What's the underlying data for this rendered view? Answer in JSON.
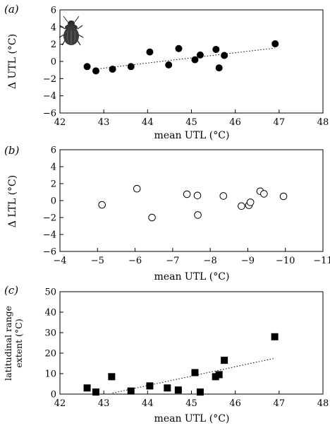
{
  "chart_data": [
    {
      "type": "scatter",
      "panel_label": "(a)",
      "xlabel": "mean UTL (°C)",
      "ylabel": "Δ UTL (°C)",
      "xlim": [
        42,
        48
      ],
      "ylim": [
        -6,
        6
      ],
      "xticks": [
        "42",
        "43",
        "44",
        "45",
        "46",
        "47",
        "48"
      ],
      "yticks": [
        "6",
        "4",
        "2",
        "0",
        "−2",
        "−4",
        "−6"
      ],
      "x_reversed": false,
      "marker": "filled-circle",
      "trendline": "dotted",
      "icon": "beetle-icon",
      "points": [
        {
          "x": 42.62,
          "y": -0.6
        },
        {
          "x": 42.82,
          "y": -1.1
        },
        {
          "x": 43.2,
          "y": -0.9
        },
        {
          "x": 43.62,
          "y": -0.6
        },
        {
          "x": 44.05,
          "y": 1.1
        },
        {
          "x": 44.48,
          "y": -0.4
        },
        {
          "x": 44.71,
          "y": 1.5
        },
        {
          "x": 45.08,
          "y": 0.2
        },
        {
          "x": 45.2,
          "y": 0.75
        },
        {
          "x": 45.56,
          "y": 1.4
        },
        {
          "x": 45.63,
          "y": -0.75
        },
        {
          "x": 45.75,
          "y": 0.7
        },
        {
          "x": 46.91,
          "y": 2.05
        }
      ],
      "trend": {
        "x": [
          42.8,
          46.9
        ],
        "y": [
          -0.9,
          1.55
        ]
      }
    },
    {
      "type": "scatter",
      "panel_label": "(b)",
      "xlabel": "mean UTL (°C)",
      "ylabel": "Δ LTL (°C)",
      "xlim": [
        -4,
        -11
      ],
      "ylim": [
        -6,
        6
      ],
      "xticks": [
        "−4",
        "−5",
        "−6",
        "−7",
        "−8",
        "−9",
        "−10",
        "−11"
      ],
      "yticks": [
        "6",
        "4",
        "2",
        "0",
        "−2",
        "−4",
        "−6"
      ],
      "x_reversed": true,
      "marker": "open-circle",
      "points": [
        {
          "x": -5.12,
          "y": -0.5
        },
        {
          "x": -6.05,
          "y": 1.4
        },
        {
          "x": -6.45,
          "y": -2.0
        },
        {
          "x": -7.38,
          "y": 0.75
        },
        {
          "x": -7.66,
          "y": 0.6
        },
        {
          "x": -7.67,
          "y": -1.7
        },
        {
          "x": -8.35,
          "y": 0.55
        },
        {
          "x": -8.83,
          "y": -0.65
        },
        {
          "x": -9.03,
          "y": -0.55
        },
        {
          "x": -9.07,
          "y": -0.2
        },
        {
          "x": -9.33,
          "y": 1.1
        },
        {
          "x": -9.43,
          "y": 0.8
        },
        {
          "x": -9.95,
          "y": 0.5
        }
      ]
    },
    {
      "type": "scatter",
      "panel_label": "(c)",
      "xlabel": "mean UTL (°C)",
      "ylabel": [
        "latitudinal range",
        "extent (°C)"
      ],
      "xlim": [
        42,
        48
      ],
      "ylim": [
        0,
        50
      ],
      "xticks": [
        "42",
        "43",
        "44",
        "45",
        "46",
        "47",
        "48"
      ],
      "yticks": [
        "50",
        "40",
        "30",
        "20",
        "10",
        "0"
      ],
      "x_reversed": false,
      "marker": "filled-square",
      "trendline": "dotted",
      "points": [
        {
          "x": 42.62,
          "y": 3.0
        },
        {
          "x": 42.82,
          "y": 1.0
        },
        {
          "x": 43.18,
          "y": 8.5
        },
        {
          "x": 43.62,
          "y": 1.5
        },
        {
          "x": 44.05,
          "y": 4.0
        },
        {
          "x": 44.45,
          "y": 3.0
        },
        {
          "x": 44.7,
          "y": 2.0
        },
        {
          "x": 45.08,
          "y": 10.5
        },
        {
          "x": 45.2,
          "y": 1.0
        },
        {
          "x": 45.55,
          "y": 8.5
        },
        {
          "x": 45.63,
          "y": 9.5
        },
        {
          "x": 45.75,
          "y": 16.5
        },
        {
          "x": 46.9,
          "y": 28.0
        }
      ],
      "trend": {
        "x": [
          43.2,
          46.9
        ],
        "y": [
          0.5,
          17.5
        ]
      }
    }
  ]
}
